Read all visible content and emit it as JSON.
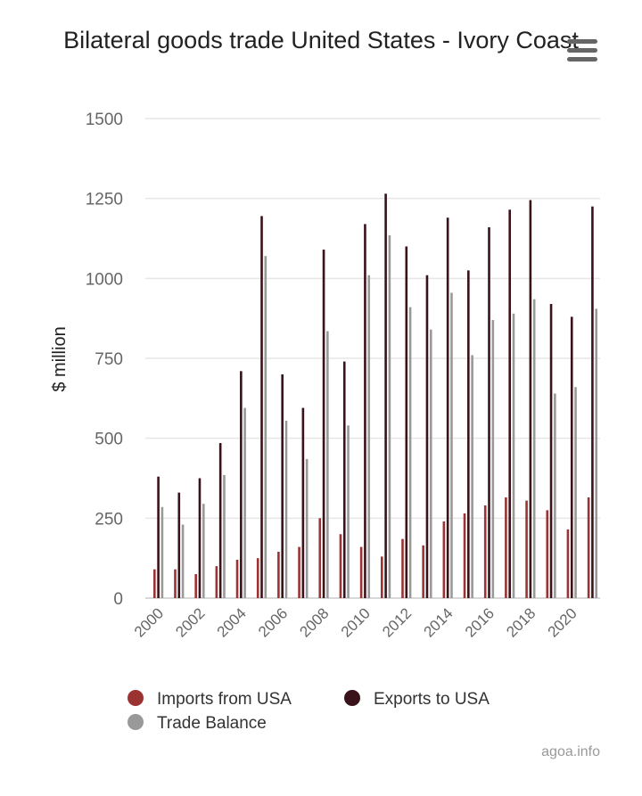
{
  "chart_data": {
    "type": "bar",
    "title": "Bilateral goods trade United States - Ivory Coast",
    "ylabel": "$ million",
    "xlabel": "",
    "ylim": [
      0,
      1500
    ],
    "yticks": [
      0,
      250,
      500,
      750,
      1000,
      1250,
      1500
    ],
    "grid": true,
    "legend_position": "bottom",
    "categories": [
      "2000",
      "2001",
      "2002",
      "2003",
      "2004",
      "2005",
      "2006",
      "2007",
      "2008",
      "2009",
      "2010",
      "2011",
      "2012",
      "2013",
      "2014",
      "2015",
      "2016",
      "2017",
      "2018",
      "2019",
      "2020",
      "2021"
    ],
    "x_tick_labels": [
      "2000",
      "2002",
      "2004",
      "2006",
      "2008",
      "2010",
      "2012",
      "2014",
      "2016",
      "2018",
      "2020"
    ],
    "series": [
      {
        "name": "Imports from USA",
        "color": "#9b3333",
        "values": [
          90,
          90,
          75,
          100,
          120,
          125,
          145,
          160,
          250,
          200,
          160,
          130,
          185,
          165,
          240,
          265,
          290,
          315,
          305,
          275,
          215,
          315
        ]
      },
      {
        "name": "Exports to USA",
        "color": "#3a1219",
        "values": [
          380,
          330,
          375,
          485,
          710,
          1195,
          700,
          595,
          1090,
          740,
          1170,
          1265,
          1100,
          1010,
          1190,
          1025,
          1160,
          1215,
          1245,
          920,
          880,
          1225
        ]
      },
      {
        "name": "Trade Balance",
        "color": "#999999",
        "values": [
          285,
          230,
          295,
          385,
          595,
          1070,
          555,
          435,
          835,
          540,
          1010,
          1135,
          910,
          840,
          955,
          760,
          870,
          890,
          935,
          640,
          660,
          905
        ]
      }
    ]
  },
  "credit": "agoa.info",
  "menu_icon": "hamburger-menu-icon"
}
